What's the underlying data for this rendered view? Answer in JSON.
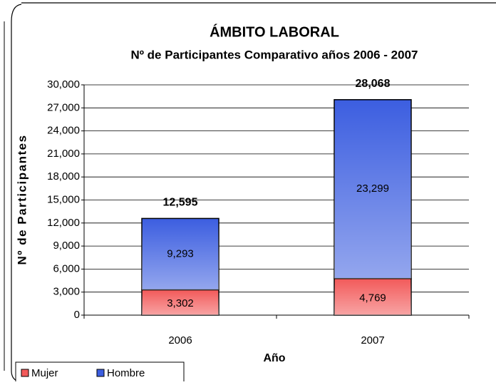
{
  "chart_data": {
    "type": "stacked-bar",
    "title": "ÁMBITO LABORAL",
    "subtitle": "Nº de Participantes Comparativo años 2006 - 2007",
    "y_label": "Nº de Participantes",
    "x_label": "Año",
    "categories": [
      "2006",
      "2007"
    ],
    "series": [
      {
        "name": "Mujer",
        "color": "#f25a5a",
        "values": [
          3302,
          4769
        ],
        "value_labels": [
          "3,302",
          "4,769"
        ]
      },
      {
        "name": "Hombre",
        "color": "#3c5ee0",
        "values": [
          9293,
          23299
        ],
        "value_labels": [
          "9,293",
          "23,299"
        ]
      }
    ],
    "totals": [
      12595,
      28068
    ],
    "total_labels": [
      "12,595",
      "28,068"
    ],
    "ylim": [
      0,
      30000
    ],
    "yticks": [
      0,
      {
        "value": 3000,
        "label": "3,000"
      },
      {
        "value": 6000,
        "label": "6,000"
      },
      {
        "value": 9000,
        "label": "9,000"
      },
      {
        "value": 12000,
        "label": "12,000"
      },
      {
        "value": 15000,
        "label": "15,000"
      },
      {
        "value": 18000,
        "label": "18,000"
      },
      {
        "value": 21000,
        "label": "21,000"
      },
      {
        "value": 24000,
        "label": "24,000"
      },
      {
        "value": 27000,
        "label": "27,000"
      },
      {
        "value": 30000,
        "label": "30,000"
      }
    ],
    "grid": true,
    "legend": "bottom-left"
  }
}
